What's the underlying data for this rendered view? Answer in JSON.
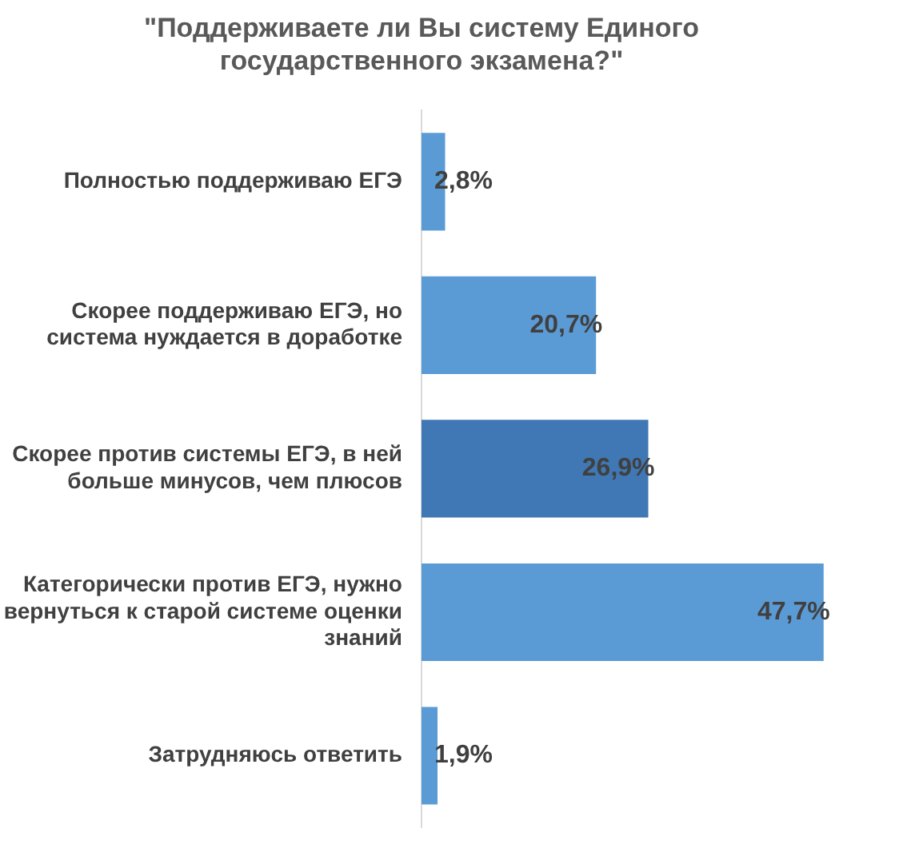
{
  "chart_data": {
    "type": "bar",
    "orientation": "horizontal",
    "title": "\"Поддерживаете ли Вы систему Единого государственного экзамена?\"",
    "categories": [
      "Полностью поддерживаю ЕГЭ",
      "Скорее поддерживаю ЕГЭ, но система нуждается в доработке",
      "Скорее против системы ЕГЭ, в ней больше минусов, чем плюсов",
      "Категорически против ЕГЭ, нужно вернуться к старой системе оценки знаний",
      "Затрудняюсь ответить"
    ],
    "values": [
      2.8,
      20.7,
      26.9,
      47.7,
      1.9
    ],
    "colors": [
      "#5b9bd5",
      "#5b9bd5",
      "#3f78b4",
      "#5b9bd5",
      "#5b9bd5"
    ],
    "value_labels": [
      "2,8%",
      "20,7%",
      "26,9%",
      "47,7%",
      "1,9%"
    ],
    "grid": false,
    "legend": false,
    "tick_labels": "y"
  }
}
